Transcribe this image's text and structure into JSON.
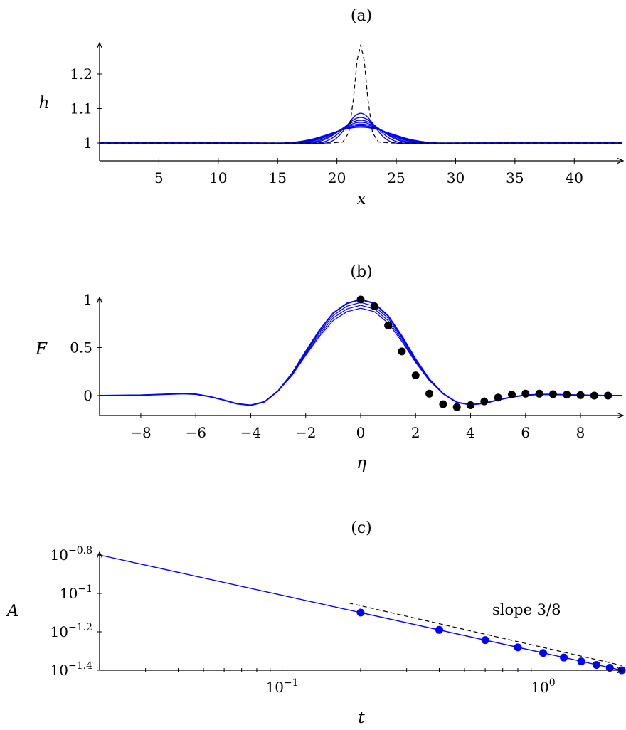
{
  "colors": {
    "curve": "#0000ff",
    "dots_b": "#000000",
    "dots_c": "#0000ff",
    "dashed": "#000000"
  },
  "chart_data": [
    {
      "type": "line",
      "title": "(a)",
      "xlabel": "x",
      "ylabel": "h",
      "xlim": [
        0,
        44
      ],
      "ylim": [
        0.95,
        1.29
      ],
      "xticks": [
        5,
        10,
        15,
        20,
        25,
        30,
        35,
        40
      ],
      "xtick_labels": [
        "5",
        "10",
        "15",
        "20",
        "25",
        "30",
        "35",
        "40"
      ],
      "yticks": [
        1,
        1.1,
        1.2
      ],
      "ytick_labels": [
        "1",
        "1.1",
        "1.2"
      ],
      "initial_condition": {
        "style": "dashed",
        "x": [
          0,
          19.5,
          20.5,
          21.0,
          21.4,
          21.7,
          22.0,
          22.3,
          22.6,
          23.0,
          23.5,
          24.5,
          44
        ],
        "y": [
          1.0,
          1.0,
          1.003,
          1.03,
          1.13,
          1.24,
          1.285,
          1.24,
          1.13,
          1.03,
          1.003,
          1.0,
          1.0
        ]
      },
      "profiles": {
        "center": 22,
        "amplitudes": [
          0.085,
          0.073,
          0.065,
          0.059,
          0.054,
          0.05,
          0.047,
          0.045
        ],
        "widths": [
          1.3,
          1.6,
          1.9,
          2.1,
          2.35,
          2.55,
          2.75,
          2.95
        ],
        "dip": 0.18
      }
    },
    {
      "type": "line",
      "title": "(b)",
      "xlabel": "η",
      "ylabel": "F",
      "xlim": [
        -9.5,
        9.5
      ],
      "ylim": [
        -0.2,
        1.05
      ],
      "xticks": [
        -8,
        -6,
        -4,
        -2,
        0,
        2,
        4,
        6,
        8
      ],
      "xtick_labels": [
        "−8",
        "−6",
        "−4",
        "−2",
        "0",
        "2",
        "4",
        "6",
        "8"
      ],
      "yticks": [
        0,
        0.5,
        1
      ],
      "ytick_labels": [
        "0",
        "0.5",
        "1"
      ],
      "curve": {
        "x": [
          -9.5,
          -8,
          -7,
          -6.5,
          -6,
          -5.5,
          -5,
          -4.5,
          -4,
          -3.5,
          -3,
          -2.5,
          -2,
          -1.5,
          -1,
          -0.5,
          0,
          0.5,
          1,
          1.5,
          2,
          2.5,
          3,
          3.5,
          4,
          4.5,
          5,
          5.5,
          6,
          6.5,
          7,
          7.5,
          8,
          8.5,
          9,
          9.5
        ],
        "y": [
          0.0,
          0.005,
          0.015,
          0.02,
          0.015,
          -0.01,
          -0.045,
          -0.085,
          -0.1,
          -0.065,
          0.05,
          0.23,
          0.46,
          0.68,
          0.86,
          0.96,
          1.0,
          0.96,
          0.83,
          0.62,
          0.38,
          0.17,
          0.02,
          -0.07,
          -0.095,
          -0.08,
          -0.045,
          -0.015,
          0.005,
          0.012,
          0.012,
          0.008,
          0.005,
          0.002,
          0.0,
          0.0
        ]
      },
      "curve_variants": [
        0.97,
        0.94,
        0.91
      ],
      "points": {
        "x": [
          0,
          0.5,
          1,
          1.5,
          2,
          2.5,
          3,
          3.5,
          4,
          4.5,
          5,
          5.5,
          6,
          6.5,
          7,
          7.5,
          8,
          8.5,
          9
        ],
        "y": [
          1.0,
          0.93,
          0.73,
          0.46,
          0.21,
          0.02,
          -0.09,
          -0.12,
          -0.1,
          -0.06,
          -0.02,
          0.01,
          0.02,
          0.02,
          0.015,
          0.01,
          0.005,
          0.0,
          0.0
        ]
      }
    },
    {
      "type": "line",
      "title": "(c)",
      "xlabel": "t",
      "ylabel": "A",
      "xscale": "log",
      "yscale": "log",
      "xlim": [
        0.02,
        2
      ],
      "ylim_log10": [
        -1.4,
        -0.8
      ],
      "xticks": [
        0.1,
        1
      ],
      "xtick_labels": [
        "10",
        "10"
      ],
      "xtick_exponents": [
        "−1",
        "0"
      ],
      "yticks_log10": [
        -0.8,
        -1,
        -1.2,
        -1.4
      ],
      "ytick_labels": [
        "10",
        "10",
        "10",
        "10"
      ],
      "ytick_exponents": [
        "−0.8",
        "−1",
        "−1.2",
        "−1.4"
      ],
      "curve": {
        "x": [
          0.02,
          2
        ],
        "log10_y": [
          -0.8,
          -1.4
        ]
      },
      "points": {
        "x": [
          0.2,
          0.4,
          0.6,
          0.8,
          1.0,
          1.2,
          1.4,
          1.6,
          1.8,
          2.0
        ],
        "log10_y": [
          -1.1,
          -1.19,
          -1.243,
          -1.281,
          -1.31,
          -1.334,
          -1.354,
          -1.372,
          -1.387,
          -1.4
        ]
      },
      "reference_line": {
        "style": "dashed",
        "x": [
          0.18,
          2.0
        ],
        "log10_y": [
          -1.05,
          -1.375
        ]
      },
      "annotation": "slope 3/8"
    }
  ]
}
